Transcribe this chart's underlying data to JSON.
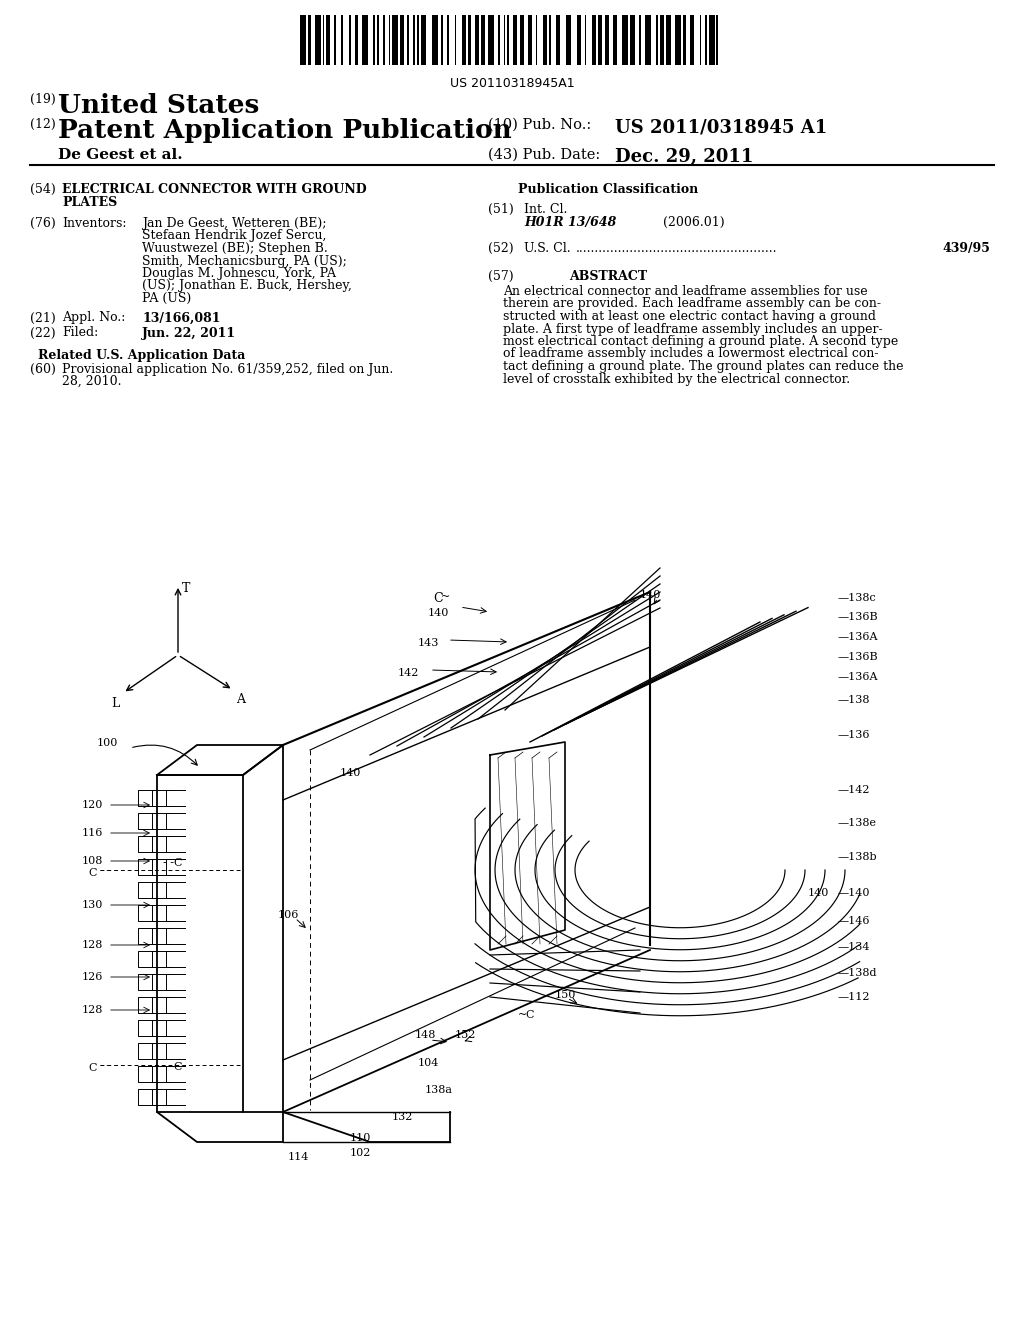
{
  "background_color": "#ffffff",
  "barcode_text": "US 20110318945A1",
  "header": {
    "country_label": "(19)",
    "country": "United States",
    "type_label": "(12)",
    "type": "Patent Application Publication",
    "pub_no_label": "(10) Pub. No.:",
    "pub_no": "US 2011/0318945 A1",
    "author": "De Geest et al.",
    "date_label": "(43) Pub. Date:",
    "date": "Dec. 29, 2011"
  },
  "left_col": {
    "title_num": "(54)",
    "title_line1": "ELECTRICAL CONNECTOR WITH GROUND",
    "title_line2": "PLATES",
    "inventors_num": "(76)",
    "inventors_label": "Inventors:",
    "inventors_lines": [
      "Jan De Geest, Wetteren (BE);",
      "Stefaan Hendrik Jozef Sercu,",
      "Wuustwezel (BE); Stephen B.",
      "Smith, Mechanicsburg, PA (US);",
      "Douglas M. Johnescu, York, PA",
      "(US); Jonathan E. Buck, Hershey,",
      "PA (US)"
    ],
    "appl_num": "(21)",
    "appl_label": "Appl. No.:",
    "appl_no": "13/166,081",
    "filed_num": "(22)",
    "filed_label": "Filed:",
    "filed_date": "Jun. 22, 2011",
    "related_title": "Related U.S. Application Data",
    "related_num": "(60)",
    "related_lines": [
      "Provisional application No. 61/359,252, filed on Jun.",
      "28, 2010."
    ]
  },
  "right_col": {
    "pub_class_title": "Publication Classification",
    "int_cl_num": "(51)",
    "int_cl_label": "Int. Cl.",
    "int_cl_code": "H01R 13/648",
    "int_cl_year": "(2006.01)",
    "us_cl_num": "(52)",
    "us_cl_label": "U.S. Cl.",
    "us_cl_value": "439/95",
    "abstract_num": "(57)",
    "abstract_title": "ABSTRACT",
    "abstract_lines": [
      "An electrical connector and leadframe assemblies for use",
      "therein are provided. Each leadframe assembly can be con-",
      "structed with at least one electric contact having a ground",
      "plate. A first type of leadframe assembly includes an upper-",
      "most electrical contact defining a ground plate. A second type",
      "of leadframe assembly includes a lowermost electrical con-",
      "tact defining a ground plate. The ground plates can reduce the",
      "level of crosstalk exhibited by the electrical connector."
    ]
  }
}
